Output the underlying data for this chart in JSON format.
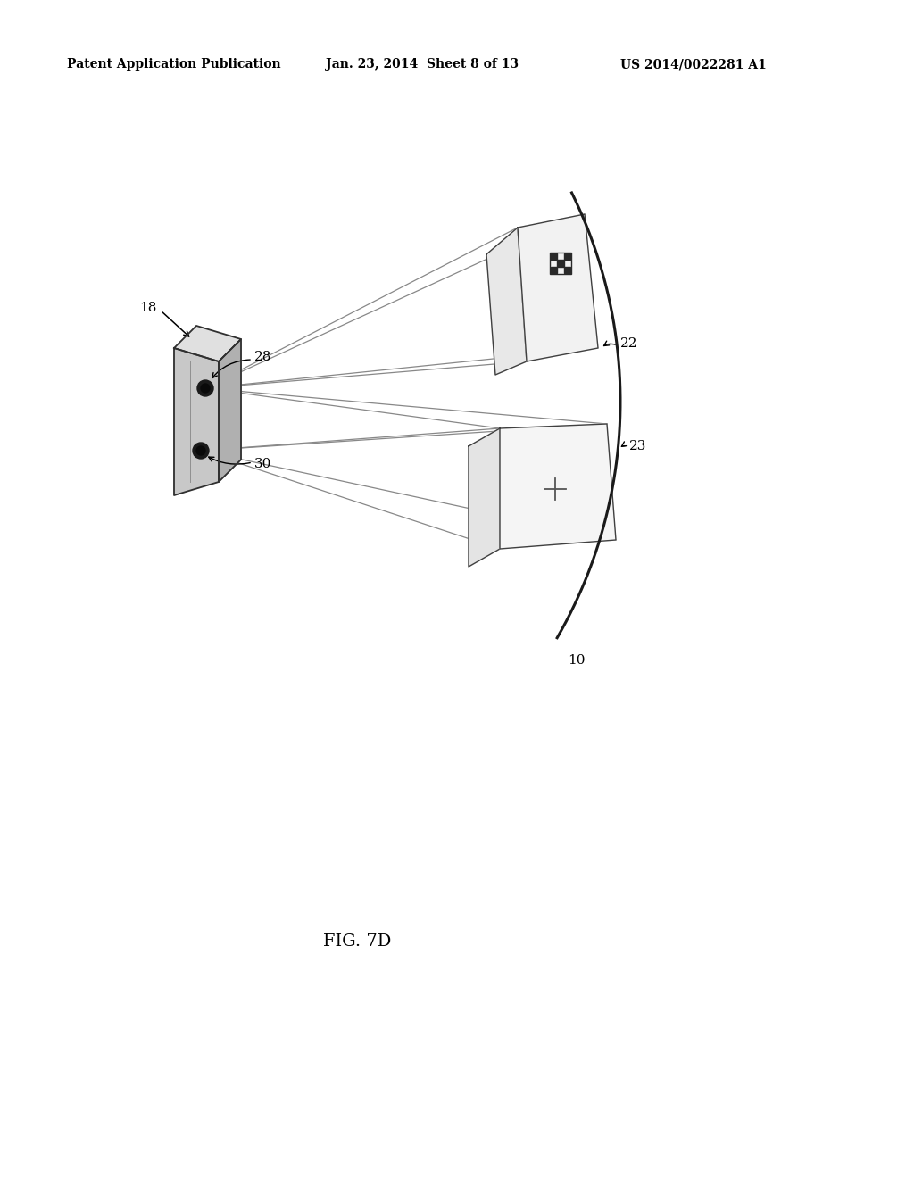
{
  "header_left": "Patent Application Publication",
  "header_mid": "Jan. 23, 2014  Sheet 8 of 13",
  "header_right": "US 2014/0022281 A1",
  "caption": "FIG. 7D",
  "bg_color": "#ffffff",
  "header_fontsize": 10,
  "caption_fontsize": 14,
  "label_18": "18",
  "label_22": "22",
  "label_23": "23",
  "label_28": "28",
  "label_30": "30",
  "label_10": "10"
}
